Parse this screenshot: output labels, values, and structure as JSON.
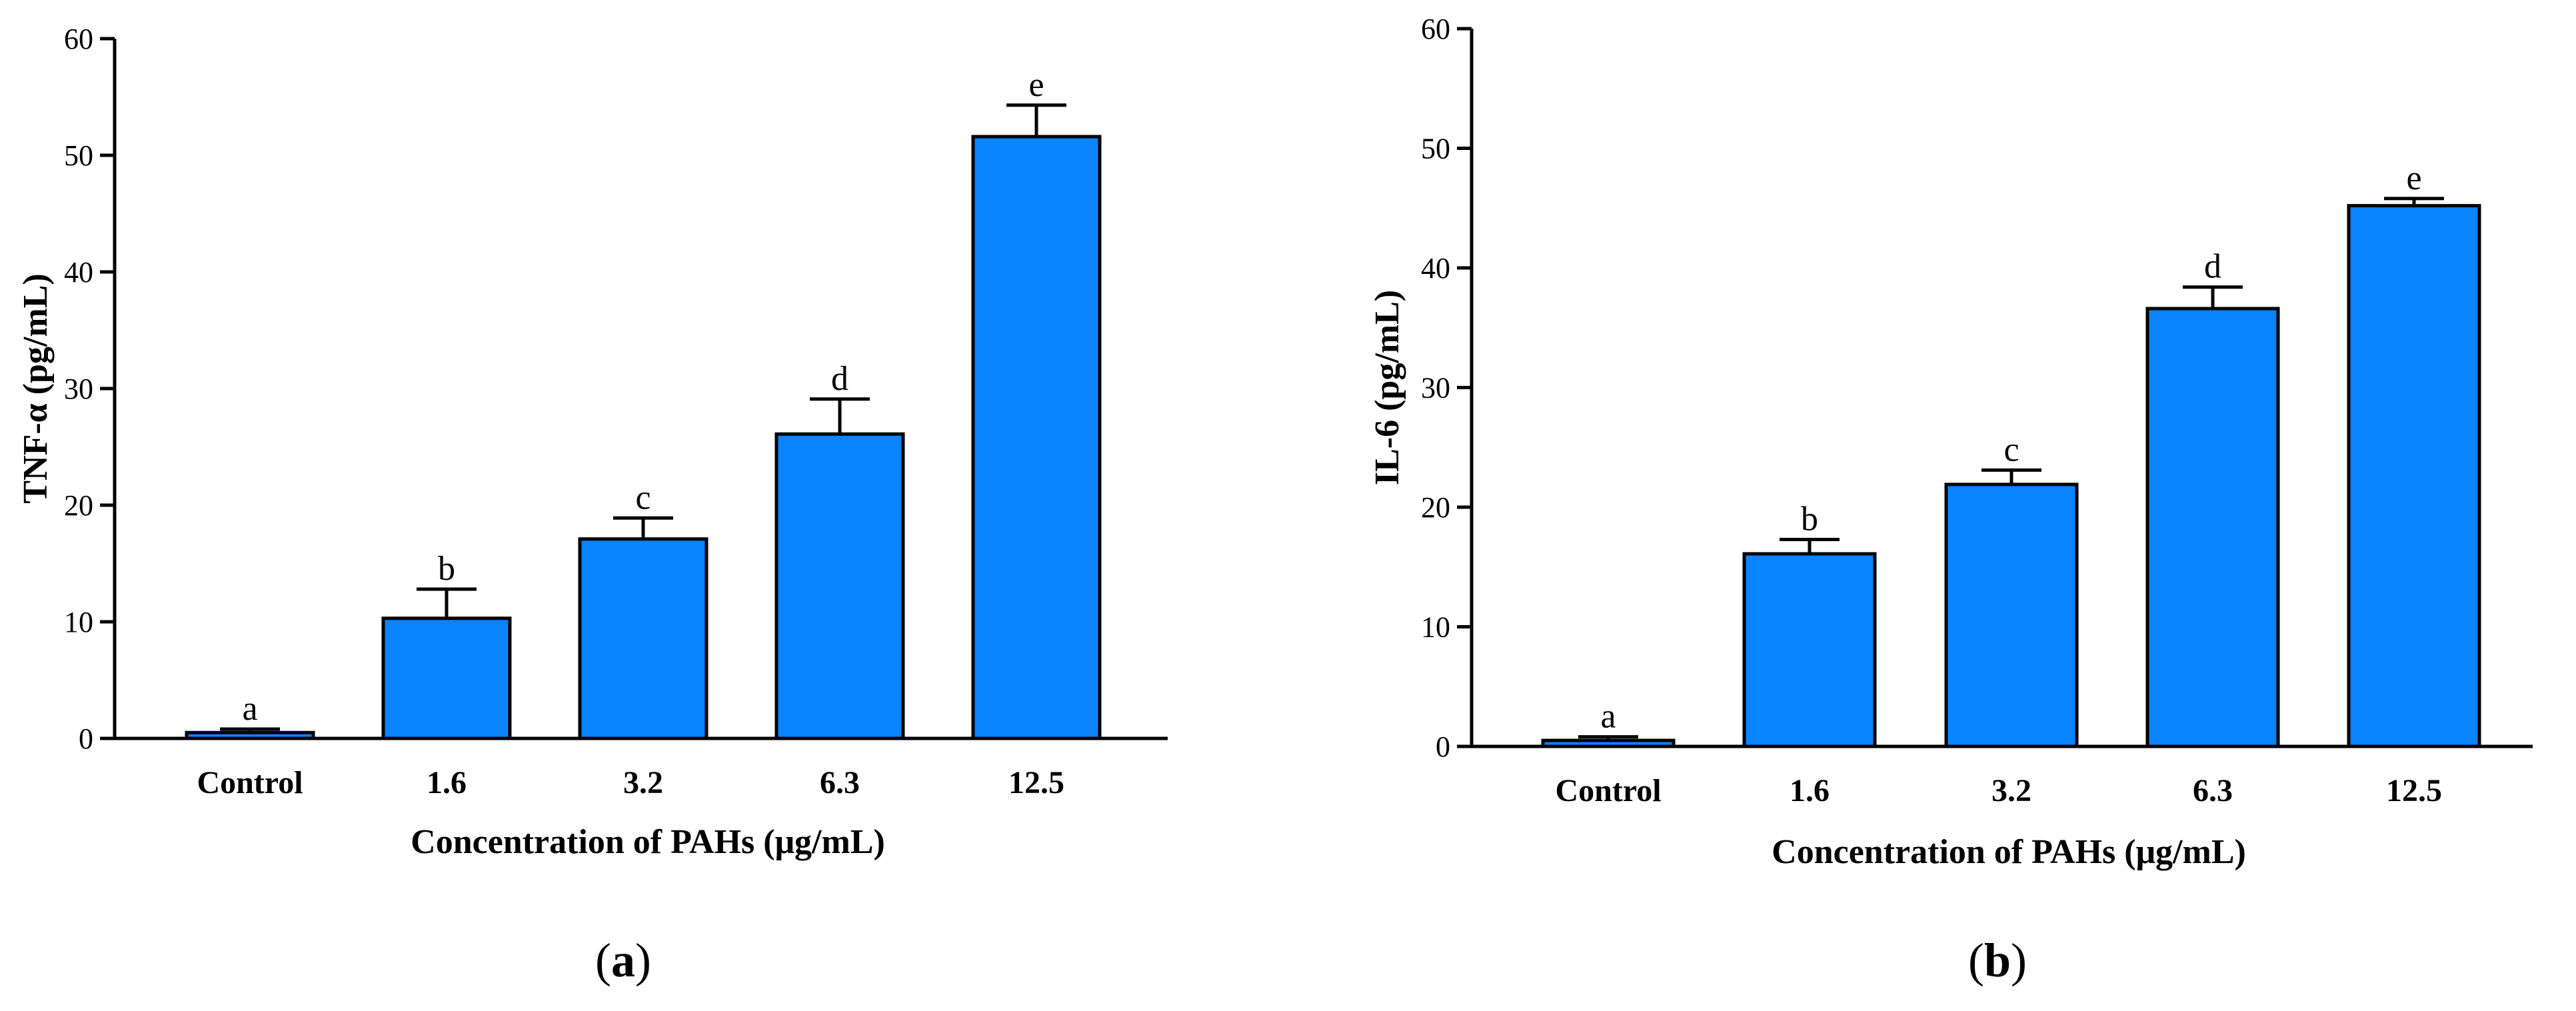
{
  "chart_data": [
    {
      "type": "bar",
      "panel": "a",
      "categories": [
        "Control",
        "1.6",
        "3.2",
        "6.3",
        "12.5"
      ],
      "values": [
        0.5,
        10.3,
        17.1,
        26.1,
        51.6
      ],
      "errors": [
        0.3,
        2.5,
        1.8,
        3.0,
        2.7
      ],
      "significance": [
        "a",
        "b",
        "c",
        "d",
        "e"
      ],
      "xlabel": "Concentration of PAHs (μg/mL)",
      "ylabel": "TNF-α (pg/mL)",
      "ylim": [
        0,
        60
      ],
      "yticks": [
        0,
        10,
        20,
        30,
        40,
        50,
        60
      ],
      "bar_color": "#0a84ff",
      "grid": false
    },
    {
      "type": "bar",
      "panel": "b",
      "categories": [
        "Control",
        "1.6",
        "3.2",
        "6.3",
        "12.5"
      ],
      "values": [
        0.5,
        16.1,
        21.9,
        36.6,
        45.2
      ],
      "errors": [
        0.3,
        1.2,
        1.2,
        1.8,
        0.6
      ],
      "significance": [
        "a",
        "b",
        "c",
        "d",
        "e"
      ],
      "xlabel": "Concentration of PAHs (μg/mL)",
      "ylabel": "IL-6 (pg/mL)",
      "ylim": [
        0,
        60
      ],
      "yticks": [
        0,
        10,
        20,
        30,
        40,
        50,
        60
      ],
      "bar_color": "#0a84ff",
      "grid": false
    }
  ],
  "panel_labels": [
    {
      "open": "(",
      "letter": "a",
      "close": ")"
    },
    {
      "open": "(",
      "letter": "b",
      "close": ")"
    }
  ]
}
